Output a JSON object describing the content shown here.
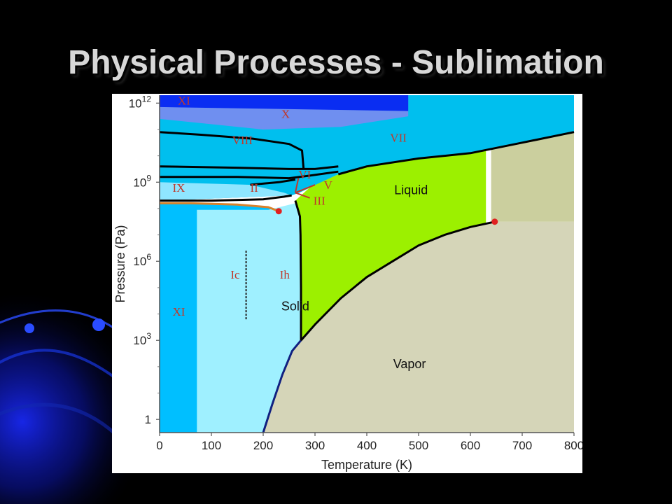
{
  "slide": {
    "title": "Physical Processes - Sublimation"
  },
  "colors": {
    "background": "#000000",
    "ice_xi_region": "#00bfff",
    "ice_ih_region": "#9ff0ff",
    "high_pressure_ices": "#00bfee",
    "ice_x": "#6f8ff0",
    "ice_xi_high": "#0a2df2",
    "liquid": "#9cf000",
    "vapor": "#d5d5b8",
    "supercritical": "#cbcf9e",
    "boundary": "#000000",
    "critical_point": "#e02020"
  },
  "chart_data": {
    "type": "phase-diagram",
    "title": "",
    "xlabel": "Temperature (K)",
    "ylabel": "Pressure (Pa)",
    "x_scale": "linear",
    "y_scale": "log",
    "xlim": [
      0,
      800
    ],
    "ylim_log10": [
      -0.5,
      12.3
    ],
    "x_ticks": [
      0,
      100,
      200,
      300,
      400,
      500,
      600,
      700,
      800
    ],
    "x_tick_labels": [
      "0",
      "100",
      "200",
      "300",
      "400",
      "500",
      "600",
      "700",
      "800"
    ],
    "y_ticks_log10": [
      0,
      3,
      6,
      9,
      12
    ],
    "y_tick_labels": [
      {
        "base": "1",
        "exp": ""
      },
      {
        "base": "10",
        "exp": "3"
      },
      {
        "base": "10",
        "exp": "6"
      },
      {
        "base": "10",
        "exp": "9"
      },
      {
        "base": "10",
        "exp": "12"
      }
    ],
    "phase_labels": [
      {
        "text": "XI",
        "T": 35,
        "logP": 12.1,
        "style": "roman"
      },
      {
        "text": "X",
        "T": 235,
        "logP": 11.6,
        "style": "roman"
      },
      {
        "text": "VIII",
        "T": 140,
        "logP": 10.6,
        "style": "roman"
      },
      {
        "text": "VII",
        "T": 445,
        "logP": 10.7,
        "style": "roman"
      },
      {
        "text": "VI",
        "T": 268,
        "logP": 9.3,
        "style": "roman"
      },
      {
        "text": "V",
        "T": 317,
        "logP": 8.9,
        "style": "roman"
      },
      {
        "text": "IX",
        "T": 25,
        "logP": 8.8,
        "style": "roman"
      },
      {
        "text": "II",
        "T": 175,
        "logP": 8.8,
        "style": "roman"
      },
      {
        "text": "III",
        "T": 297,
        "logP": 8.3,
        "style": "roman"
      },
      {
        "text": "Liquid",
        "T": 453,
        "logP": 8.7,
        "style": "sans"
      },
      {
        "text": "Ic",
        "T": 137,
        "logP": 5.5,
        "style": "roman"
      },
      {
        "text": "Ih",
        "T": 232,
        "logP": 5.5,
        "style": "roman"
      },
      {
        "text": "Solid",
        "T": 235,
        "logP": 4.3,
        "style": "sans"
      },
      {
        "text": "XI",
        "T": 25,
        "logP": 4.1,
        "style": "roman"
      },
      {
        "text": "Vapor",
        "T": 451,
        "logP": 2.1,
        "style": "sans"
      }
    ],
    "boundaries": {
      "sublimation": [
        [
          200,
          -0.5
        ],
        [
          218,
          0.6
        ],
        [
          237,
          1.7
        ],
        [
          256,
          2.6
        ],
        [
          273,
          3.0
        ]
      ],
      "ih_liquid_melting": [
        [
          273,
          3.0
        ],
        [
          273,
          5.0
        ],
        [
          272,
          7.0
        ],
        [
          271,
          7.7
        ],
        [
          262,
          8.3
        ]
      ],
      "vaporization": [
        [
          273,
          3.0
        ],
        [
          300,
          3.6
        ],
        [
          350,
          4.6
        ],
        [
          400,
          5.4
        ],
        [
          450,
          6.0
        ],
        [
          500,
          6.6
        ],
        [
          550,
          7.0
        ],
        [
          600,
          7.3
        ],
        [
          647,
          7.5
        ]
      ],
      "ice_vii_liquid": [
        [
          345,
          9.3
        ],
        [
          400,
          9.6
        ],
        [
          500,
          9.9
        ],
        [
          600,
          10.1
        ],
        [
          700,
          10.5
        ],
        [
          800,
          10.9
        ]
      ],
      "ice_vii_viii": [
        [
          0,
          10.9
        ],
        [
          80,
          10.8
        ],
        [
          180,
          10.65
        ],
        [
          250,
          10.45
        ],
        [
          275,
          10.2
        ],
        [
          278,
          9.5
        ]
      ],
      "ice_vi_lower": [
        [
          0,
          9.2
        ],
        [
          150,
          9.2
        ],
        [
          250,
          9.15
        ],
        [
          290,
          9.25
        ],
        [
          345,
          9.4
        ]
      ],
      "ice_vi_upper": [
        [
          0,
          9.6
        ],
        [
          150,
          9.55
        ],
        [
          250,
          9.5
        ],
        [
          300,
          9.5
        ],
        [
          345,
          9.6
        ]
      ],
      "ice_ii_ih": [
        [
          0,
          8.3
        ],
        [
          100,
          8.3
        ],
        [
          200,
          8.35
        ],
        [
          240,
          8.45
        ],
        [
          255,
          8.5
        ]
      ],
      "ice_ii_upper": [
        [
          175,
          8.9
        ],
        [
          230,
          9.0
        ],
        [
          262,
          9.1
        ]
      ],
      "ice_xi_ih_orange": [
        [
          0,
          8.2
        ],
        [
          60,
          8.2
        ],
        [
          150,
          8.15
        ],
        [
          210,
          8.05
        ],
        [
          230,
          7.9
        ]
      ]
    },
    "points": [
      {
        "T": 230,
        "logP": 7.9,
        "kind": "endpoint"
      },
      {
        "T": 647,
        "logP": 7.5,
        "kind": "critical_point"
      }
    ]
  }
}
